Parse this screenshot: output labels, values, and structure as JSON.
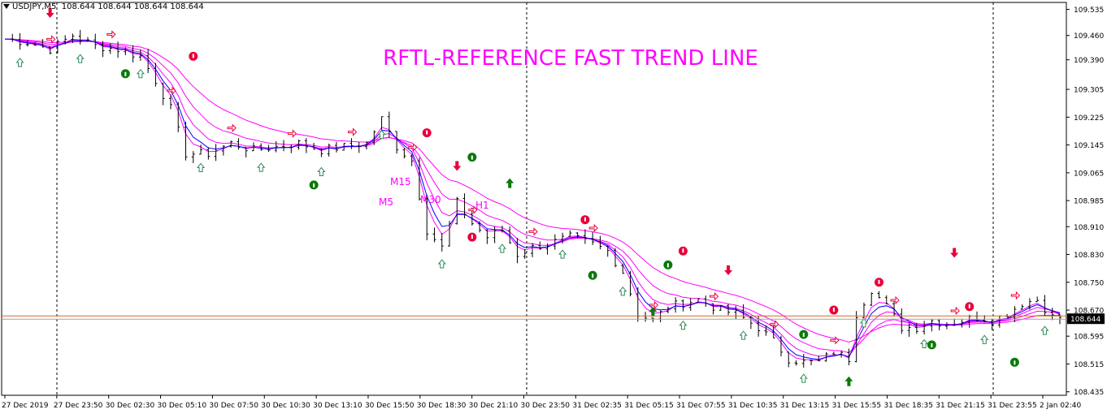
{
  "symbol_bar": {
    "symbol": "USDJPY,M5",
    "ohlc": "108.644 108.644 108.644 108.644"
  },
  "title": "RFTL-REFERENCE FAST TREND LINE",
  "current_price": "108.644",
  "colors": {
    "background": "#ffffff",
    "candles": "#000000",
    "ma_magenta": "#ff00ff",
    "ma_blue": "#0000ff",
    "title": "#ff00ff",
    "price_line": "#d26a2a",
    "price_box": "#000000",
    "down_arrow": "#e8003a",
    "up_arrow": "#0a7a0a",
    "outline_arrow_up": "#2e8b57",
    "outline_arrow_dn": "#e8003a"
  },
  "chart_data": {
    "type": "candlestick",
    "symbol": "USDJPY",
    "timeframe": "M5",
    "price_axis": {
      "ticks": [
        "109.535",
        "109.460",
        "109.390",
        "109.305",
        "109.225",
        "109.145",
        "109.065",
        "108.985",
        "108.910",
        "108.830",
        "108.750",
        "108.670",
        "108.595",
        "108.515",
        "108.435"
      ],
      "range": [
        108.425,
        109.555
      ]
    },
    "time_axis": {
      "ticks": [
        "27 Dec 2019",
        "27 Dec 23:50",
        "30 Dec 02:30",
        "30 Dec 05:10",
        "30 Dec 07:50",
        "30 Dec 10:30",
        "30 Dec 13:10",
        "30 Dec 15:50",
        "30 Dec 18:30",
        "30 Dec 21:10",
        "30 Dec 23:50",
        "31 Dec 02:35",
        "31 Dec 05:15",
        "31 Dec 07:55",
        "31 Dec 10:35",
        "31 Dec 13:15",
        "31 Dec 15:55",
        "31 Dec 18:35",
        "31 Dec 21:15",
        "31 Dec 23:55",
        "2 Jan 02:40"
      ]
    },
    "ma_labels": [
      "M5",
      "M15",
      "M30",
      "H1"
    ],
    "price_trend": [
      [
        0,
        109.45
      ],
      [
        3,
        109.44
      ],
      [
        6,
        109.42
      ],
      [
        9,
        109.46
      ],
      [
        12,
        109.43
      ],
      [
        15,
        109.42
      ],
      [
        18,
        109.4
      ],
      [
        20,
        109.33
      ],
      [
        22,
        109.25
      ],
      [
        24,
        109.12
      ],
      [
        27,
        109.12
      ],
      [
        30,
        109.15
      ],
      [
        33,
        109.13
      ],
      [
        36,
        109.14
      ],
      [
        39,
        109.15
      ],
      [
        42,
        109.13
      ],
      [
        45,
        109.14
      ],
      [
        48,
        109.15
      ],
      [
        50,
        109.22
      ],
      [
        52,
        109.14
      ],
      [
        54,
        109.1
      ],
      [
        56,
        108.9
      ],
      [
        58,
        108.85
      ],
      [
        60,
        108.98
      ],
      [
        62,
        108.92
      ],
      [
        64,
        108.88
      ],
      [
        66,
        108.9
      ],
      [
        68,
        108.83
      ],
      [
        70,
        108.85
      ],
      [
        72,
        108.86
      ],
      [
        75,
        108.88
      ],
      [
        78,
        108.86
      ],
      [
        80,
        108.84
      ],
      [
        82,
        108.78
      ],
      [
        84,
        108.66
      ],
      [
        86,
        108.64
      ],
      [
        88,
        108.68
      ],
      [
        90,
        108.69
      ],
      [
        92,
        108.7
      ],
      [
        95,
        108.67
      ],
      [
        97,
        108.66
      ],
      [
        100,
        108.62
      ],
      [
        102,
        108.58
      ],
      [
        104,
        108.53
      ],
      [
        106,
        108.52
      ],
      [
        108,
        108.52
      ],
      [
        110,
        108.55
      ],
      [
        112,
        108.53
      ],
      [
        113,
        108.66
      ],
      [
        115,
        108.73
      ],
      [
        117,
        108.68
      ],
      [
        119,
        108.62
      ],
      [
        121,
        108.62
      ],
      [
        123,
        108.64
      ],
      [
        125,
        108.63
      ],
      [
        127,
        108.64
      ],
      [
        129,
        108.65
      ],
      [
        131,
        108.64
      ],
      [
        133,
        108.66
      ],
      [
        135,
        108.69
      ],
      [
        137,
        108.7
      ],
      [
        139,
        108.65
      ],
      [
        140,
        108.65
      ]
    ],
    "annotations": {
      "red_down_arrows": [
        [
          6,
          109.52
        ],
        [
          60,
          109.08
        ],
        [
          96,
          108.78
        ],
        [
          126,
          108.83
        ]
      ],
      "green_up_arrows": [
        [
          67,
          109.04
        ],
        [
          86,
          108.67
        ],
        [
          112,
          108.47
        ]
      ],
      "red_round_markers": [
        [
          25,
          109.4
        ],
        [
          56,
          109.18
        ],
        [
          62,
          108.88
        ],
        [
          77,
          108.93
        ],
        [
          90,
          108.84
        ],
        [
          110,
          108.67
        ],
        [
          116,
          108.75
        ],
        [
          128,
          108.68
        ]
      ],
      "green_round_markers": [
        [
          16,
          109.35
        ],
        [
          41,
          109.03
        ],
        [
          62,
          109.11
        ],
        [
          78,
          108.77
        ],
        [
          88,
          108.8
        ],
        [
          106,
          108.6
        ],
        [
          123,
          108.57
        ],
        [
          134,
          108.52
        ]
      ]
    }
  }
}
